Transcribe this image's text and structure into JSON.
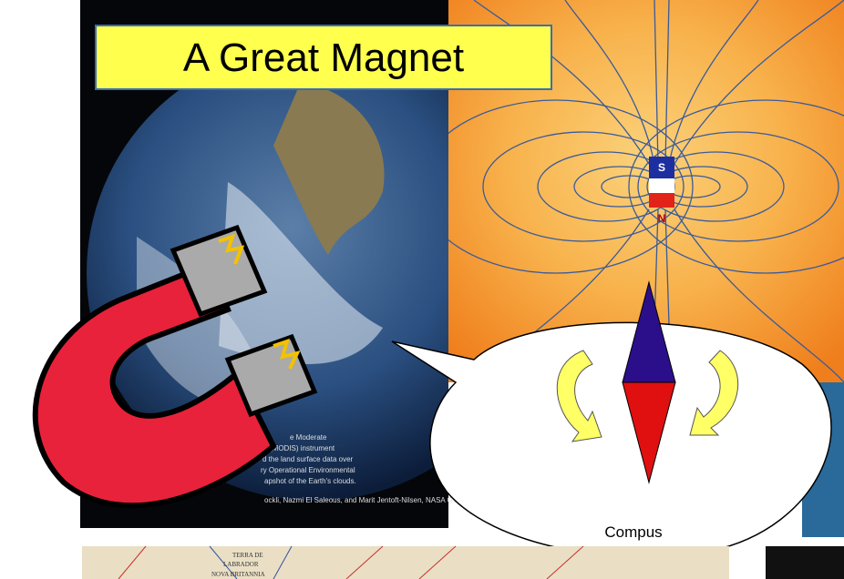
{
  "title": "A Great Magnet",
  "magnet_labels": {
    "south": "S",
    "north": "N"
  },
  "bubble_label": "Compus",
  "earth_caption": [
    "e Moderate",
    "(MODIS) instrument",
    "d the land surface data over",
    "ry Operational Environmental",
    "apshot of the Earth's clouds.",
    "ockli, Nazmi El Saleous, and Marit Jentoft-Nilsen, NASA GSFC"
  ],
  "map_labels": [
    "TERRA DE",
    "LABRADOR",
    "NOVA BRITANNIA"
  ]
}
